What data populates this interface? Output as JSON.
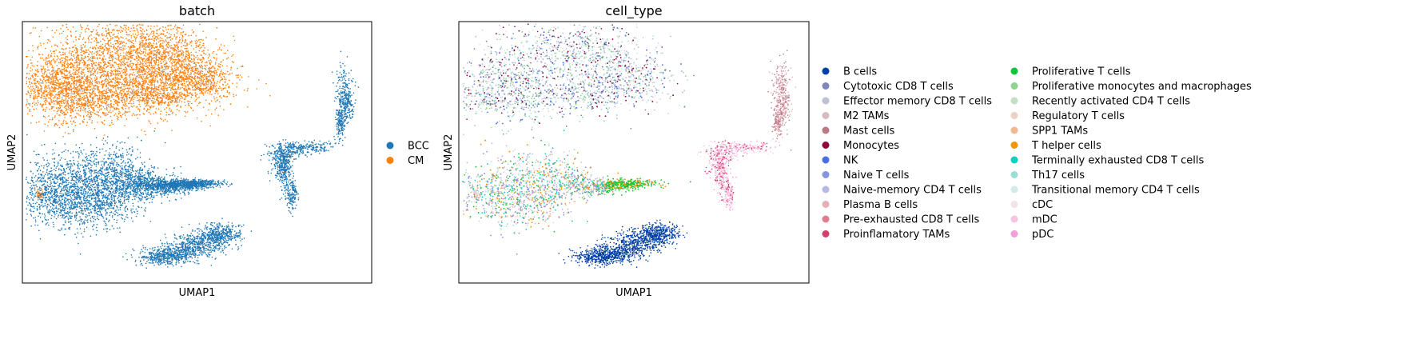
{
  "chart_data": [
    {
      "type": "scatter",
      "title": "batch",
      "xlabel": "UMAP1",
      "ylabel": "UMAP2",
      "grid": false,
      "ticks": false,
      "legend_placement": "right",
      "series": [
        {
          "name": "BCC",
          "color": "#1f77b4"
        },
        {
          "name": "CM",
          "color": "#ff7f0e"
        }
      ],
      "clusters": [
        {
          "series": "CM",
          "region": "large upper-left blob"
        },
        {
          "series": "CM",
          "region": "small left-edge speck"
        },
        {
          "series": "BCC",
          "region": "middle-left blob with tail"
        },
        {
          "series": "BCC",
          "region": "lower elongated streak"
        },
        {
          "series": "BCC",
          "region": "right upper crescent"
        },
        {
          "series": "BCC",
          "region": "right middle fan"
        }
      ]
    },
    {
      "type": "scatter",
      "title": "cell_type",
      "xlabel": "UMAP1",
      "ylabel": "UMAP2",
      "grid": false,
      "ticks": false,
      "legend_placement": "right",
      "legend_columns": 2,
      "series": [
        {
          "name": "B cells",
          "color": "#023fa5"
        },
        {
          "name": "Cytotoxic CD8 T cells",
          "color": "#7d87b9"
        },
        {
          "name": "Effector memory CD8 T cells",
          "color": "#bec1d4"
        },
        {
          "name": "M2 TAMs",
          "color": "#d6bcc0"
        },
        {
          "name": "Mast cells",
          "color": "#bb7784"
        },
        {
          "name": "Monocytes",
          "color": "#8e063b"
        },
        {
          "name": "NK",
          "color": "#4a6fe3"
        },
        {
          "name": "Naive T cells",
          "color": "#8595e1"
        },
        {
          "name": "Naive-memory CD4 T cells",
          "color": "#b5bbe3"
        },
        {
          "name": "Plasma B cells",
          "color": "#e6afb9"
        },
        {
          "name": "Pre-exhausted CD8 T cells",
          "color": "#e07b91"
        },
        {
          "name": "Proinflamatory TAMs",
          "color": "#d33f6a"
        },
        {
          "name": "Proliferative T cells",
          "color": "#11c638"
        },
        {
          "name": "Proliferative monocytes and macrophages",
          "color": "#8dd593"
        },
        {
          "name": "Recently activated CD4 T cells",
          "color": "#c6dec7"
        },
        {
          "name": "Regulatory T cells",
          "color": "#ead3c6"
        },
        {
          "name": "SPP1 TAMs",
          "color": "#f0b98d"
        },
        {
          "name": "T helper cells",
          "color": "#ef9708"
        },
        {
          "name": "Terminally exhausted CD8 T cells",
          "color": "#0fcfc0"
        },
        {
          "name": "Th17 cells",
          "color": "#9cded6"
        },
        {
          "name": "Transitional memory CD4 T cells",
          "color": "#d5eae7"
        },
        {
          "name": "cDC",
          "color": "#f3e1eb"
        },
        {
          "name": "mDC",
          "color": "#f6c4e1"
        },
        {
          "name": "pDC",
          "color": "#f79cd4"
        }
      ]
    }
  ]
}
